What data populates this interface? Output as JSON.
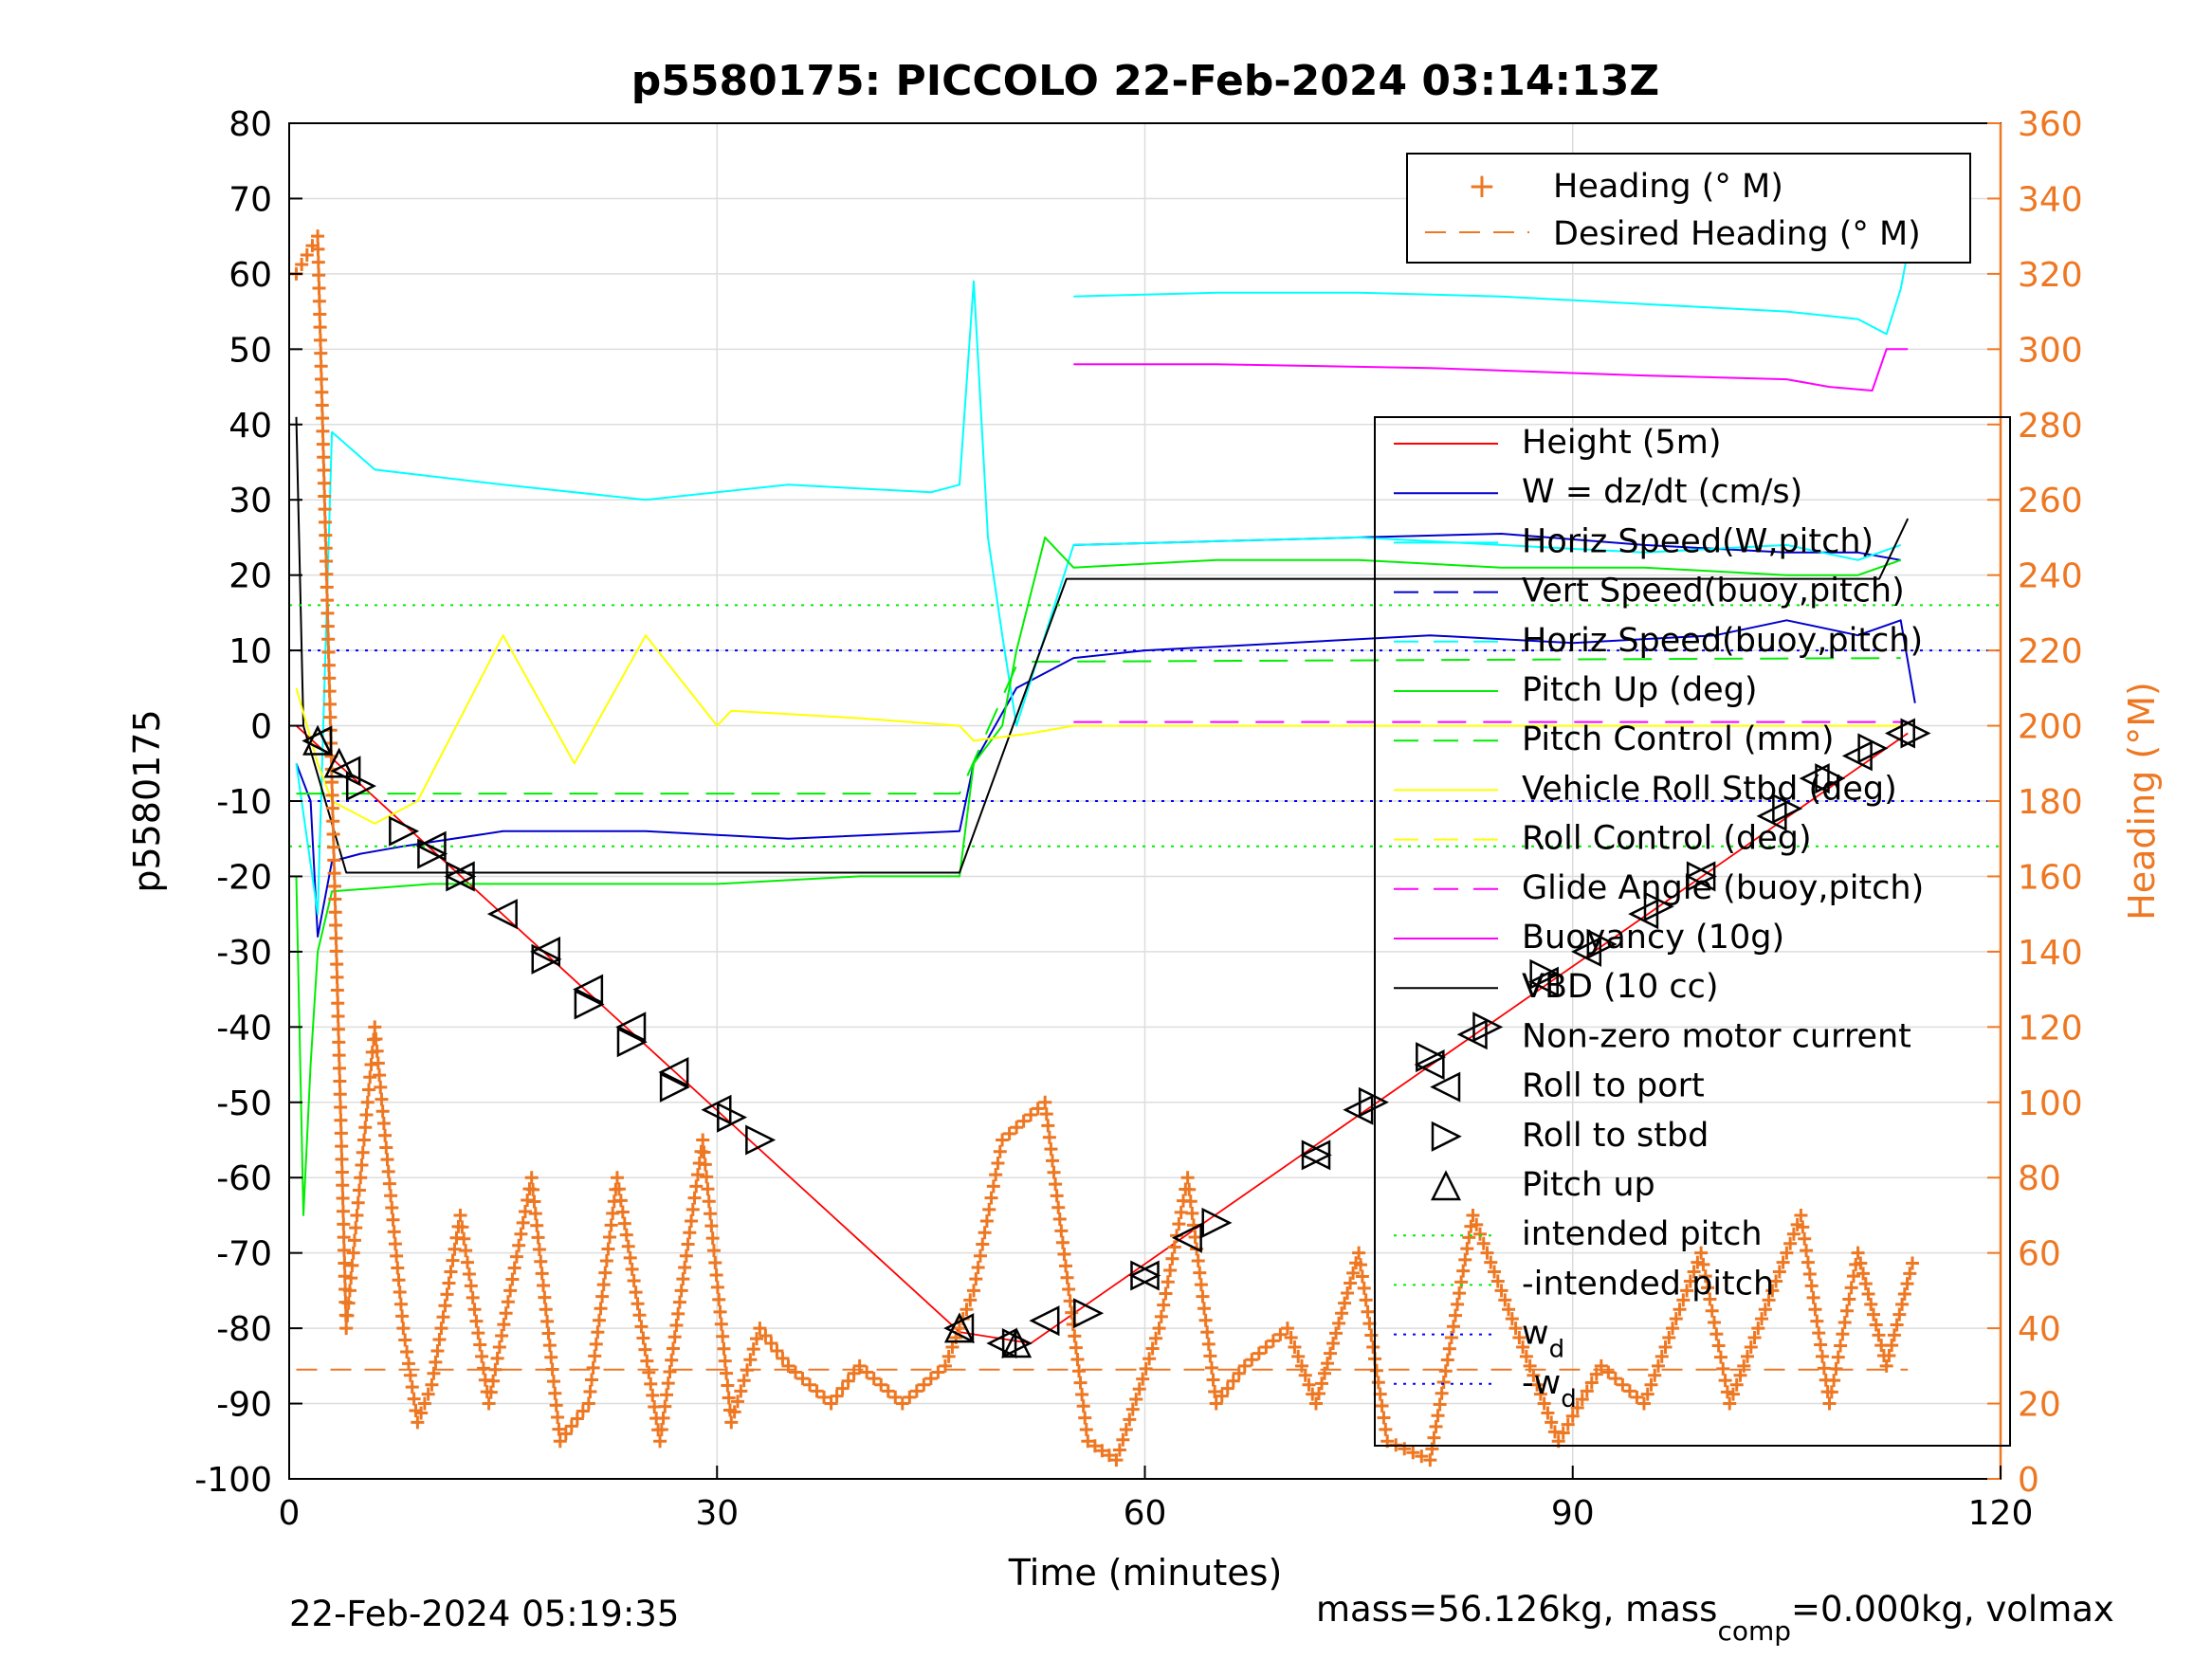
{
  "chart_data": {
    "type": "line",
    "title": "p5580175: PICCOLO 22-Feb-2024 03:14:13Z",
    "xlabel": "Time (minutes)",
    "ylabel": "p5580175",
    "ylabel_right": "Heading (°M)",
    "xlim": [
      0,
      120
    ],
    "ylim": [
      -100,
      80
    ],
    "ylim_right": [
      0,
      360
    ],
    "xticks": [
      "0",
      "30",
      "60",
      "90",
      "120"
    ],
    "yticks": [
      "80",
      "70",
      "60",
      "50",
      "40",
      "30",
      "20",
      "10",
      "0",
      "-10",
      "-20",
      "-30",
      "-40",
      "-50",
      "-60",
      "-70",
      "-80",
      "-90",
      "-100"
    ],
    "yticks_right": [
      "360",
      "340",
      "320",
      "300",
      "280",
      "260",
      "240",
      "220",
      "200",
      "180",
      "160",
      "140",
      "120",
      "100",
      "80",
      "60",
      "40",
      "20",
      "0"
    ],
    "grid": true,
    "legend_heading": {
      "placement": "top-right",
      "entries": [
        "Heading (° M)",
        "Desired Heading (° M)"
      ]
    },
    "legend_main": {
      "placement": "right",
      "entries": [
        "Height (5m)",
        "W = dz/dt (cm/s)",
        "Horiz Speed(W,pitch)",
        "Vert Speed(buoy,pitch)",
        "Horiz Speed(buoy,pitch)",
        "Pitch Up (deg)",
        "Pitch Control (mm)",
        "Vehicle Roll Stbd (deg)",
        "Roll Control (deg)",
        "Glide Angle (buoy,pitch)",
        "Buoyancy (10g)",
        "VBD (10 cc)",
        "Non-zero motor current",
        "Roll to port",
        "Roll to stbd",
        "Pitch up",
        "intended pitch",
        "-intended pitch",
        "w",
        "-w"
      ],
      "subscript": "d"
    },
    "colors": {
      "height": "#ff0000",
      "w": "#0000cc",
      "horiz_speed": "#00ffff",
      "pitch": "#00ee00",
      "roll": "#ffff00",
      "glide": "#ff00ff",
      "buoyancy": "#ff00ff",
      "vbd": "#000000",
      "heading": "#ee7722",
      "intended": "#00ee00",
      "wd": "#0000ff"
    },
    "series": [
      {
        "name": "Height (5m)",
        "x": [
          0.5,
          47,
          52,
          113.5
        ],
        "y": [
          0,
          -80.5,
          -82,
          -1
        ]
      },
      {
        "name": "W = dz/dt (cm/s)",
        "x": [
          0.5,
          1.5,
          2,
          3,
          5,
          8,
          15,
          25,
          35,
          47,
          48,
          51,
          55,
          60,
          70,
          80,
          90,
          100,
          105,
          110,
          113,
          114
        ],
        "y": [
          -5,
          -10,
          -28,
          -18,
          -17,
          -16,
          -14,
          -14,
          -15,
          -14,
          -5,
          5,
          9,
          10,
          11,
          12,
          11,
          12,
          14,
          12,
          14,
          3
        ]
      },
      {
        "name": "Vert Speed(buoy,pitch)",
        "x": [
          55,
          65,
          75,
          85,
          95,
          105,
          110,
          113
        ],
        "y": [
          24,
          24.5,
          25,
          25.5,
          24,
          23,
          23,
          22
        ]
      },
      {
        "name": "Horiz Speed(W,pitch)",
        "x": [
          0.5,
          2,
          3,
          6,
          15,
          25,
          35,
          45,
          47,
          48,
          49,
          50,
          51,
          55,
          65,
          75,
          85,
          95,
          105,
          110,
          113
        ],
        "y": [
          -5,
          -25,
          39,
          34,
          32,
          30,
          32,
          31,
          32,
          59,
          25,
          12,
          0,
          24,
          24.5,
          25,
          24,
          23,
          24,
          22,
          24
        ]
      },
      {
        "name": "Horiz Speed(buoy,pitch)",
        "x": [
          55,
          65,
          75,
          85,
          95,
          105,
          110,
          112,
          113,
          113.5
        ],
        "y": [
          57,
          57.5,
          57.5,
          57,
          56,
          55,
          54,
          52,
          58,
          63
        ]
      },
      {
        "name": "Pitch Up (deg)",
        "x": [
          0.5,
          1,
          1.5,
          2,
          3,
          10,
          20,
          30,
          40,
          47,
          48,
          50,
          51,
          53,
          55,
          65,
          75,
          85,
          95,
          105,
          110,
          113
        ],
        "y": [
          -20,
          -65,
          -45,
          -30,
          -22,
          -21,
          -21,
          -21,
          -20,
          -20,
          -5,
          0,
          10,
          25,
          21,
          22,
          22,
          21,
          21,
          20,
          20,
          22
        ]
      },
      {
        "name": "Pitch Control (mm)",
        "x": [
          0.5,
          5,
          47,
          51,
          52,
          113
        ],
        "y": [
          -9,
          -9,
          -9,
          8,
          8.5,
          9
        ]
      },
      {
        "name": "Glide Angle (buoy,pitch)",
        "x": [
          55,
          113.5
        ],
        "y": [
          0.5,
          0.5
        ]
      },
      {
        "name": "Buoyancy (10g)",
        "x": [
          55,
          65,
          80,
          95,
          105,
          108,
          111,
          112,
          113.5
        ],
        "y": [
          48,
          48,
          47.5,
          46.5,
          46,
          45,
          44.5,
          50,
          50
        ]
      },
      {
        "name": "VBD (10 cc)",
        "x": [
          0.5,
          1,
          4,
          47,
          54.5,
          111.5,
          113.5
        ],
        "y": [
          41,
          0,
          -19.5,
          -19.5,
          19.5,
          19.5,
          27.5
        ]
      },
      {
        "name": "intended pitch",
        "x": [
          0,
          120
        ],
        "y": [
          16,
          16
        ]
      },
      {
        "name": "-intended pitch",
        "x": [
          0,
          120
        ],
        "y": [
          -16,
          -16
        ]
      },
      {
        "name": "wd",
        "x": [
          0,
          120
        ],
        "y": [
          10,
          10
        ]
      },
      {
        "name": "-wd",
        "x": [
          0,
          120
        ],
        "y": [
          -10,
          -10
        ]
      },
      {
        "name": "Roll Control (deg)",
        "x": [
          0.5,
          2,
          3,
          5,
          6,
          9,
          15,
          20,
          25,
          30,
          31,
          40,
          47,
          48,
          52,
          55,
          60,
          70,
          80,
          90,
          100,
          110,
          113
        ],
        "y": [
          5,
          -5,
          -10,
          -12,
          -13,
          -10,
          12,
          -5,
          12,
          0,
          2,
          1,
          0,
          -2,
          -1,
          0,
          0,
          0,
          0,
          0,
          0,
          0,
          0
        ]
      },
      {
        "name": "Heading (° M)",
        "x": [
          0.5,
          2,
          4,
          5,
          6,
          8,
          9,
          10,
          12,
          14,
          17,
          19,
          21,
          23,
          26,
          29,
          31,
          33,
          35,
          38,
          40,
          43,
          46,
          48,
          50,
          53,
          56,
          58,
          61,
          63,
          65,
          67,
          70,
          72,
          75,
          77,
          80,
          83,
          86,
          89,
          92,
          95,
          99,
          101,
          104,
          106,
          108,
          110,
          112,
          114
        ],
        "y_right": [
          320,
          330,
          40,
          80,
          120,
          40,
          15,
          25,
          70,
          20,
          80,
          10,
          20,
          80,
          10,
          90,
          15,
          40,
          30,
          20,
          30,
          20,
          30,
          50,
          90,
          100,
          10,
          5,
          40,
          80,
          20,
          30,
          40,
          20,
          60,
          10,
          5,
          70,
          40,
          10,
          30,
          20,
          60,
          20,
          50,
          70,
          20,
          60,
          30,
          60
        ]
      },
      {
        "name": "Desired Heading (° M)",
        "x": [
          0.5,
          113.5
        ],
        "y_right": [
          29,
          29
        ]
      },
      {
        "name": "Roll to port",
        "marker": "triangle-left",
        "x": [
          2,
          4,
          10,
          12,
          15,
          18,
          21,
          24,
          27,
          30,
          47,
          50,
          53,
          60,
          63,
          72,
          75,
          80,
          83,
          88,
          91,
          95,
          99,
          104,
          107,
          110,
          113
        ],
        "y": [
          -2,
          -6,
          -16,
          -20,
          -25,
          -30,
          -35,
          -40,
          -46,
          -51,
          -80,
          -82,
          -79,
          -73,
          -68,
          -57,
          -51,
          -45,
          -41,
          -34,
          -30,
          -25,
          -20,
          -12,
          -7,
          -4,
          -1
        ]
      },
      {
        "name": "Roll to stbd",
        "marker": "triangle-right",
        "x": [
          5,
          8,
          10,
          12,
          18,
          21,
          24,
          27,
          31,
          33,
          51,
          56,
          60,
          65,
          72,
          76,
          80,
          84,
          88,
          92,
          96,
          99,
          105,
          108,
          111,
          114
        ],
        "y": [
          -8,
          -14,
          -17,
          -20,
          -31,
          -37,
          -42,
          -48,
          -52,
          -55,
          -82,
          -78,
          -73,
          -66,
          -57,
          -50,
          -44,
          -40,
          -33,
          -29,
          -24,
          -20,
          -11,
          -7,
          -3,
          -1
        ]
      },
      {
        "name": "Pitch up",
        "marker": "triangle-up",
        "x": [
          2,
          3.5,
          47,
          51
        ],
        "y": [
          -2,
          -5,
          -80,
          -82
        ]
      }
    ]
  },
  "footer": {
    "timestamp": "22-Feb-2024 05:19:35",
    "mass_text_1": "mass=56.126kg, mass",
    "mass_sub": "comp",
    "mass_text_2": "=0.000kg, volmax"
  }
}
